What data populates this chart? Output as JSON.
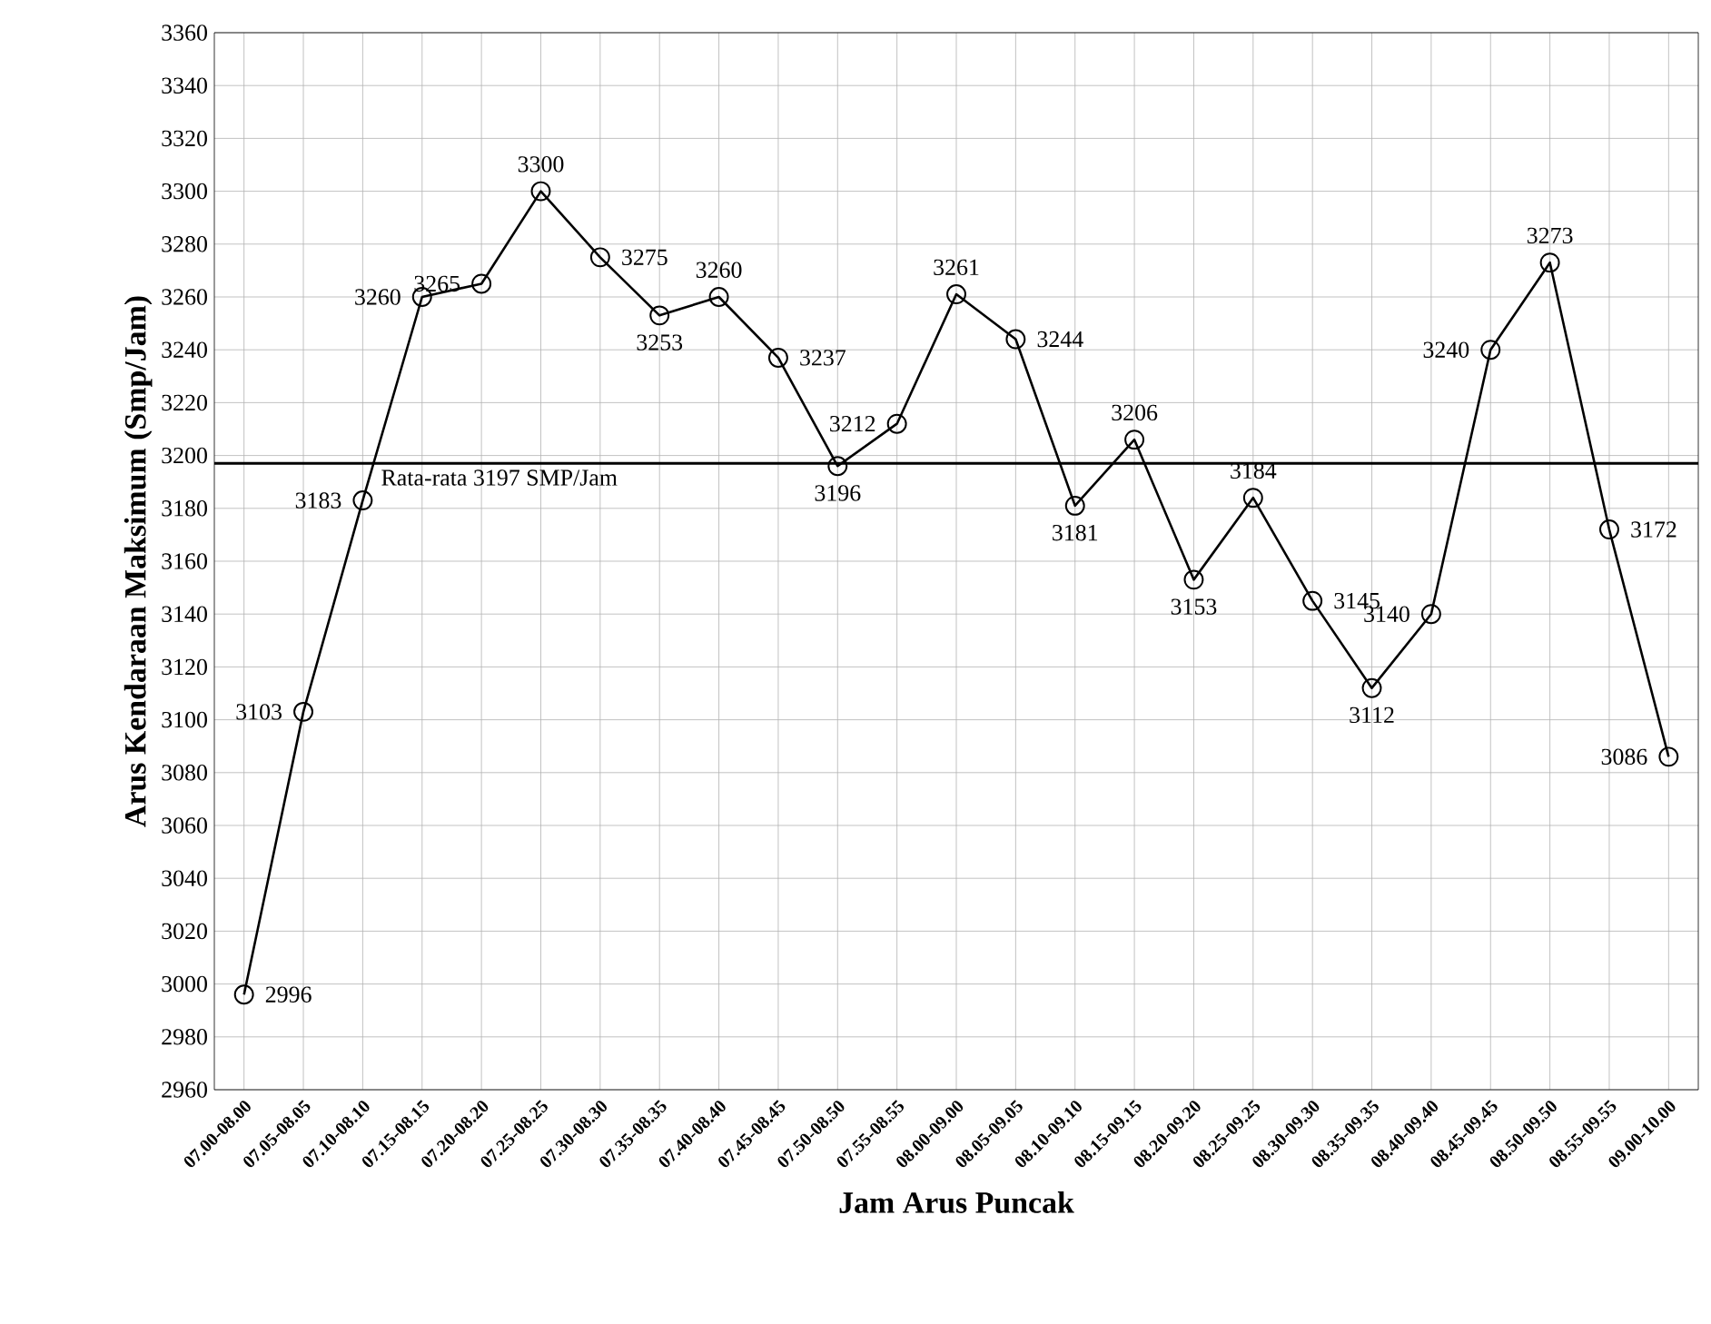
{
  "chart_data": {
    "type": "line",
    "xlabel": "Jam Arus Puncak",
    "ylabel": "Arus Kendaraan Maksimum (Smp/Jam)",
    "categories": [
      "07.00-08.00",
      "07.05-08.05",
      "07.10-08.10",
      "07.15-08.15",
      "07.20-08.20",
      "07.25-08.25",
      "07.30-08.30",
      "07.35-08.35",
      "07.40-08.40",
      "07.45-08.45",
      "07.50-08.50",
      "07.55-08.55",
      "08.00-09.00",
      "08.05-09.05",
      "08.10-09.10",
      "08.15-09.15",
      "08.20-09.20",
      "08.25-09.25",
      "08.30-09.30",
      "08.35-09.35",
      "08.40-09.40",
      "08.45-09.45",
      "08.50-09.50",
      "08.55-09.55",
      "09.00-10.00"
    ],
    "values": [
      2996,
      3103,
      3183,
      3260,
      3265,
      3300,
      3275,
      3253,
      3260,
      3237,
      3196,
      3212,
      3261,
      3244,
      3181,
      3206,
      3153,
      3184,
      3145,
      3112,
      3140,
      3240,
      3273,
      3172,
      3086
    ],
    "color": "#000000",
    "marker": "circle",
    "line_style": "solid",
    "data_labels": true,
    "grid": true,
    "ylim": [
      2960,
      3360
    ],
    "yticks": [
      2960,
      2980,
      3000,
      3020,
      3040,
      3060,
      3080,
      3100,
      3120,
      3140,
      3160,
      3180,
      3200,
      3220,
      3240,
      3260,
      3280,
      3300,
      3320,
      3340,
      3360
    ],
    "ref_lines": [
      {
        "axis": "y",
        "value": 3197,
        "label": "Rata-rata 3197 SMP/Jam",
        "color": "#000000"
      }
    ]
  }
}
